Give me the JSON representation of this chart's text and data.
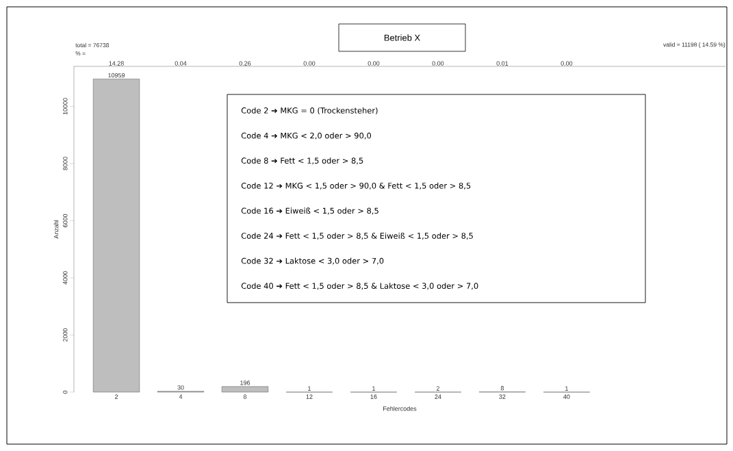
{
  "chart_data": {
    "type": "bar",
    "title": "Betrieb X",
    "xlabel": "Fehlercodes",
    "ylabel": "Anzahl",
    "categories": [
      "2",
      "4",
      "8",
      "12",
      "16",
      "24",
      "32",
      "40"
    ],
    "values": [
      10959,
      30,
      196,
      1,
      1,
      2,
      8,
      1
    ],
    "color": "#bebebe",
    "ylim": [
      0,
      11400
    ],
    "yticks": [
      0,
      2000,
      4000,
      6000,
      8000,
      10000
    ],
    "data_labels": true,
    "annotations": [
      "total = 76738",
      "% =",
      "valid = 11198 ( 14.59 %)",
      "14.28",
      "0.04",
      "0.26",
      "0.00",
      "0.00",
      "0.00",
      "0.01",
      "0.00",
      "Code 2 ➔ MKG = 0 (Trockensteher)",
      "Code 4 ➔ MKG < 2,0 oder > 90,0",
      "Code 8 ➔ Fett < 1,5 oder > 8,5",
      "Code 12 ➔ MKG < 1,5 oder > 90,0 & Fett < 1,5 oder > 8,5",
      "Code 16 ➔ Eiweiß < 1,5 oder > 8,5",
      "Code 24 ➔ Fett < 1,5 oder > 8,5 & Eiweiß < 1,5 oder  > 8,5",
      "Code 32 ➔ Laktose < 3,0 oder > 7,0",
      "Code 40 ➔ Fett < 1,5 oder > 8,5 & Laktose < 3,0 oder > 7,0"
    ]
  }
}
